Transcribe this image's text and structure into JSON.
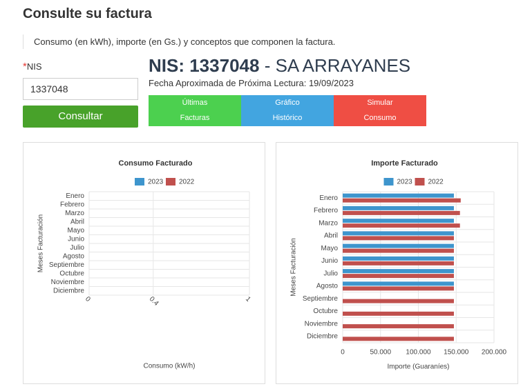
{
  "header": {
    "title": "Consulte su factura",
    "subtitle": "Consumo (en kWh), importe (en Gs.) y conceptos que componen la factura."
  },
  "form": {
    "required_mark": "*",
    "label": "NIS",
    "input_value": "1337048",
    "button": "Consultar"
  },
  "info": {
    "nis": "NIS: 1337048",
    "name": "- SA ARRAYANES",
    "date": "Fecha Aproximada de Próxima Lectura: 19/09/2023"
  },
  "tabs": [
    {
      "lines": [
        "Últimas",
        "Facturas"
      ],
      "color": "#4cd04f"
    },
    {
      "lines": [
        "Gráfico",
        "Histórico"
      ],
      "color": "#42a5e0"
    },
    {
      "lines": [
        "Simular",
        "Consumo"
      ],
      "color": "#ef4e44"
    }
  ],
  "chart_data": [
    {
      "type": "bar",
      "horizontal": true,
      "title": "Consumo Facturado",
      "xlabel": "Consumo (kW/h)",
      "ylabel": "Meses Facturación",
      "categories": [
        "Enero",
        "Febrero",
        "Marzo",
        "Abril",
        "Mayo",
        "Junio",
        "Julio",
        "Agosto",
        "Septiembre",
        "Octubre",
        "Noviembre",
        "Diciembre"
      ],
      "series": [
        {
          "name": "2023",
          "color": "#3e95cd",
          "values": [
            0,
            0,
            0,
            0,
            0,
            0,
            0,
            0,
            0,
            0,
            0,
            0
          ]
        },
        {
          "name": "2022",
          "color": "#c0504d",
          "values": [
            0,
            0,
            0,
            0,
            0,
            0,
            0,
            0,
            0,
            0,
            0,
            0
          ]
        }
      ],
      "xlim": [
        0,
        1
      ],
      "xticks": [
        0,
        0.4,
        1
      ],
      "grid": true,
      "legend": "top"
    },
    {
      "type": "bar",
      "horizontal": true,
      "title": "Importe Facturado",
      "xlabel": "Importe (Guaraníes)",
      "ylabel": "Meses Facturación",
      "categories": [
        "Enero",
        "Febrero",
        "Marzo",
        "Abril",
        "Mayo",
        "Junio",
        "Julio",
        "Agosto",
        "Septiembre",
        "Octubre",
        "Noviembre",
        "Diciembre"
      ],
      "series": [
        {
          "name": "2023",
          "color": "#3e95cd",
          "values": [
            147000,
            147000,
            147000,
            147000,
            147000,
            147000,
            147000,
            147000,
            null,
            null,
            null,
            null
          ]
        },
        {
          "name": "2022",
          "color": "#c0504d",
          "values": [
            156000,
            155000,
            155000,
            147000,
            147000,
            147000,
            147000,
            147000,
            147000,
            147000,
            147000,
            147000
          ]
        }
      ],
      "xlim": [
        0,
        200000
      ],
      "xticks": [
        0,
        {
          "value": 50000,
          "label": "50.000"
        },
        {
          "value": 100000,
          "label": "100.000"
        },
        {
          "value": 150000,
          "label": "150.000"
        },
        {
          "value": 200000,
          "label": "200.000"
        }
      ],
      "grid": true,
      "legend": "top"
    }
  ]
}
